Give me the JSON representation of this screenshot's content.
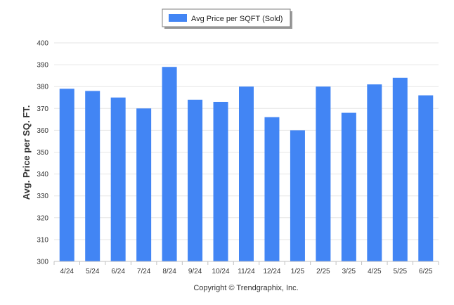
{
  "chart_data": {
    "type": "bar",
    "categories": [
      "4/24",
      "5/24",
      "6/24",
      "7/24",
      "8/24",
      "9/24",
      "10/24",
      "11/24",
      "12/24",
      "1/25",
      "2/25",
      "3/25",
      "4/25",
      "5/25",
      "6/25"
    ],
    "series": [
      {
        "name": "Avg Price per SQFT (Sold)",
        "color": "#4285f4",
        "values": [
          379,
          378,
          375,
          370,
          389,
          374,
          373,
          380,
          366,
          360,
          380,
          368,
          381,
          384,
          376
        ]
      }
    ],
    "xlabel": "",
    "ylabel": "Avg. Price per SQ. FT.",
    "ylim": [
      300,
      400
    ],
    "yticks": [
      300,
      310,
      320,
      330,
      340,
      350,
      360,
      370,
      380,
      390,
      400
    ],
    "grid": true,
    "legend_position": "top-center"
  },
  "credit": "Copyright © Trendgraphix, Inc."
}
